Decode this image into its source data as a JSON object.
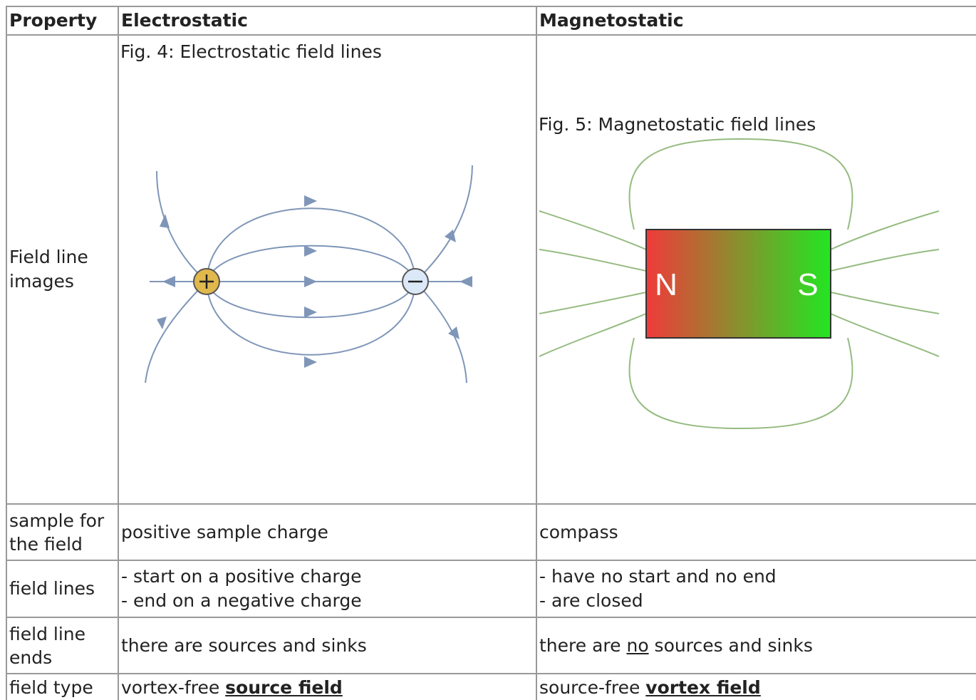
{
  "table": {
    "header": [
      "Property",
      "Electrostatic",
      "Magnetostatic"
    ],
    "images_row": {
      "property": "Field line images",
      "electrostatic_caption": "Fig. 4: Electrostatic field lines",
      "magnetostatic_caption": "Fig. 5: Magnetostatic field lines",
      "magnet_poles": [
        "N",
        "S"
      ]
    },
    "sample_row": {
      "property": "sample for the field",
      "electrostatic": "positive sample charge",
      "magnetostatic": "compass"
    },
    "lines_row": {
      "property": "field lines",
      "electrostatic": [
        "- start on a positive charge",
        "- end on a negative charge"
      ],
      "magnetostatic": [
        "- have no start and no end",
        "- are closed"
      ]
    },
    "ends_row": {
      "property": "field line ends",
      "electrostatic": "there are sources and sinks",
      "magnetostatic": [
        "there are ",
        "no",
        " sources and sinks"
      ]
    },
    "type_row": {
      "property": "field type",
      "electrostatic": [
        "vortex-free ",
        "source field"
      ],
      "magnetostatic": [
        "source-free ",
        "vortex field"
      ]
    }
  }
}
